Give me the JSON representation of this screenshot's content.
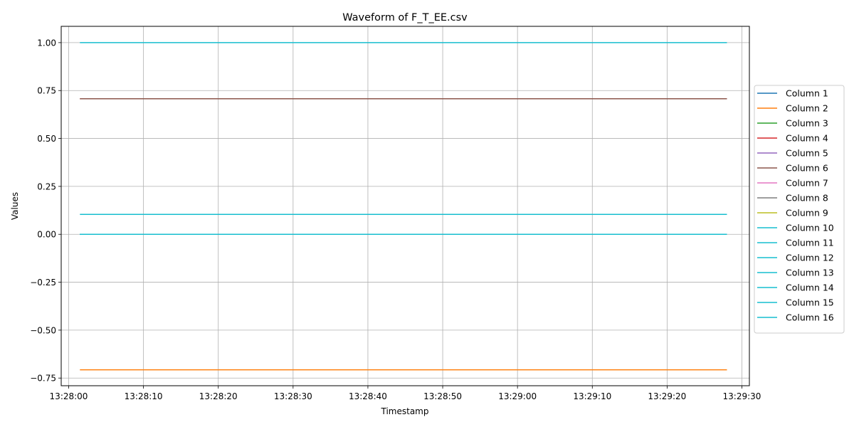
{
  "chart_data": {
    "type": "line",
    "title": "Waveform of F_T_EE.csv",
    "xlabel": "Timestamp",
    "ylabel": "Values",
    "x_ticks": [
      "13:28:00",
      "13:28:10",
      "13:28:20",
      "13:28:30",
      "13:28:40",
      "13:28:50",
      "13:29:00",
      "13:29:10",
      "13:29:20",
      "13:29:30"
    ],
    "y_ticks": [
      "1.00",
      "0.75",
      "0.50",
      "0.25",
      "0.00",
      "−0.25",
      "−0.50",
      "−0.75"
    ],
    "x_range": [
      "13:27:59",
      "13:29:31"
    ],
    "ylim": [
      -0.79,
      1.085
    ],
    "x": [
      "13:28:01.5",
      "13:29:28"
    ],
    "grid": true,
    "legend_position": "right",
    "series": [
      {
        "name": "Column 1",
        "color": "#1f77b4",
        "values": [
          0.0,
          0.0
        ]
      },
      {
        "name": "Column 2",
        "color": "#ff7f0e",
        "values": [
          -0.707,
          -0.707
        ]
      },
      {
        "name": "Column 3",
        "color": "#2ca02c",
        "values": [
          0.0,
          0.0
        ]
      },
      {
        "name": "Column 4",
        "color": "#d62728",
        "values": [
          0.707,
          0.707
        ]
      },
      {
        "name": "Column 5",
        "color": "#9467bd",
        "values": [
          0.0,
          0.0
        ]
      },
      {
        "name": "Column 6",
        "color": "#8c564b",
        "values": [
          0.707,
          0.707
        ]
      },
      {
        "name": "Column 7",
        "color": "#e377c2",
        "values": [
          0.0,
          0.0
        ]
      },
      {
        "name": "Column 8",
        "color": "#7f7f7f",
        "values": [
          0.0,
          0.0
        ]
      },
      {
        "name": "Column 9",
        "color": "#bcbd22",
        "values": [
          0.0,
          0.0
        ]
      },
      {
        "name": "Column 10",
        "color": "#17becf",
        "values": [
          0.0,
          0.0
        ]
      },
      {
        "name": "Column 11",
        "color": "#17becf",
        "values": [
          0.0,
          0.0
        ]
      },
      {
        "name": "Column 12",
        "color": "#17becf",
        "values": [
          0.0,
          0.0
        ]
      },
      {
        "name": "Column 13",
        "color": "#17becf",
        "values": [
          0.0,
          0.0
        ]
      },
      {
        "name": "Column 14",
        "color": "#17becf",
        "values": [
          0.0,
          0.0
        ]
      },
      {
        "name": "Column 15",
        "color": "#17becf",
        "values": [
          0.104,
          0.104
        ]
      },
      {
        "name": "Column 16",
        "color": "#17becf",
        "values": [
          1.0,
          1.0
        ]
      }
    ]
  }
}
